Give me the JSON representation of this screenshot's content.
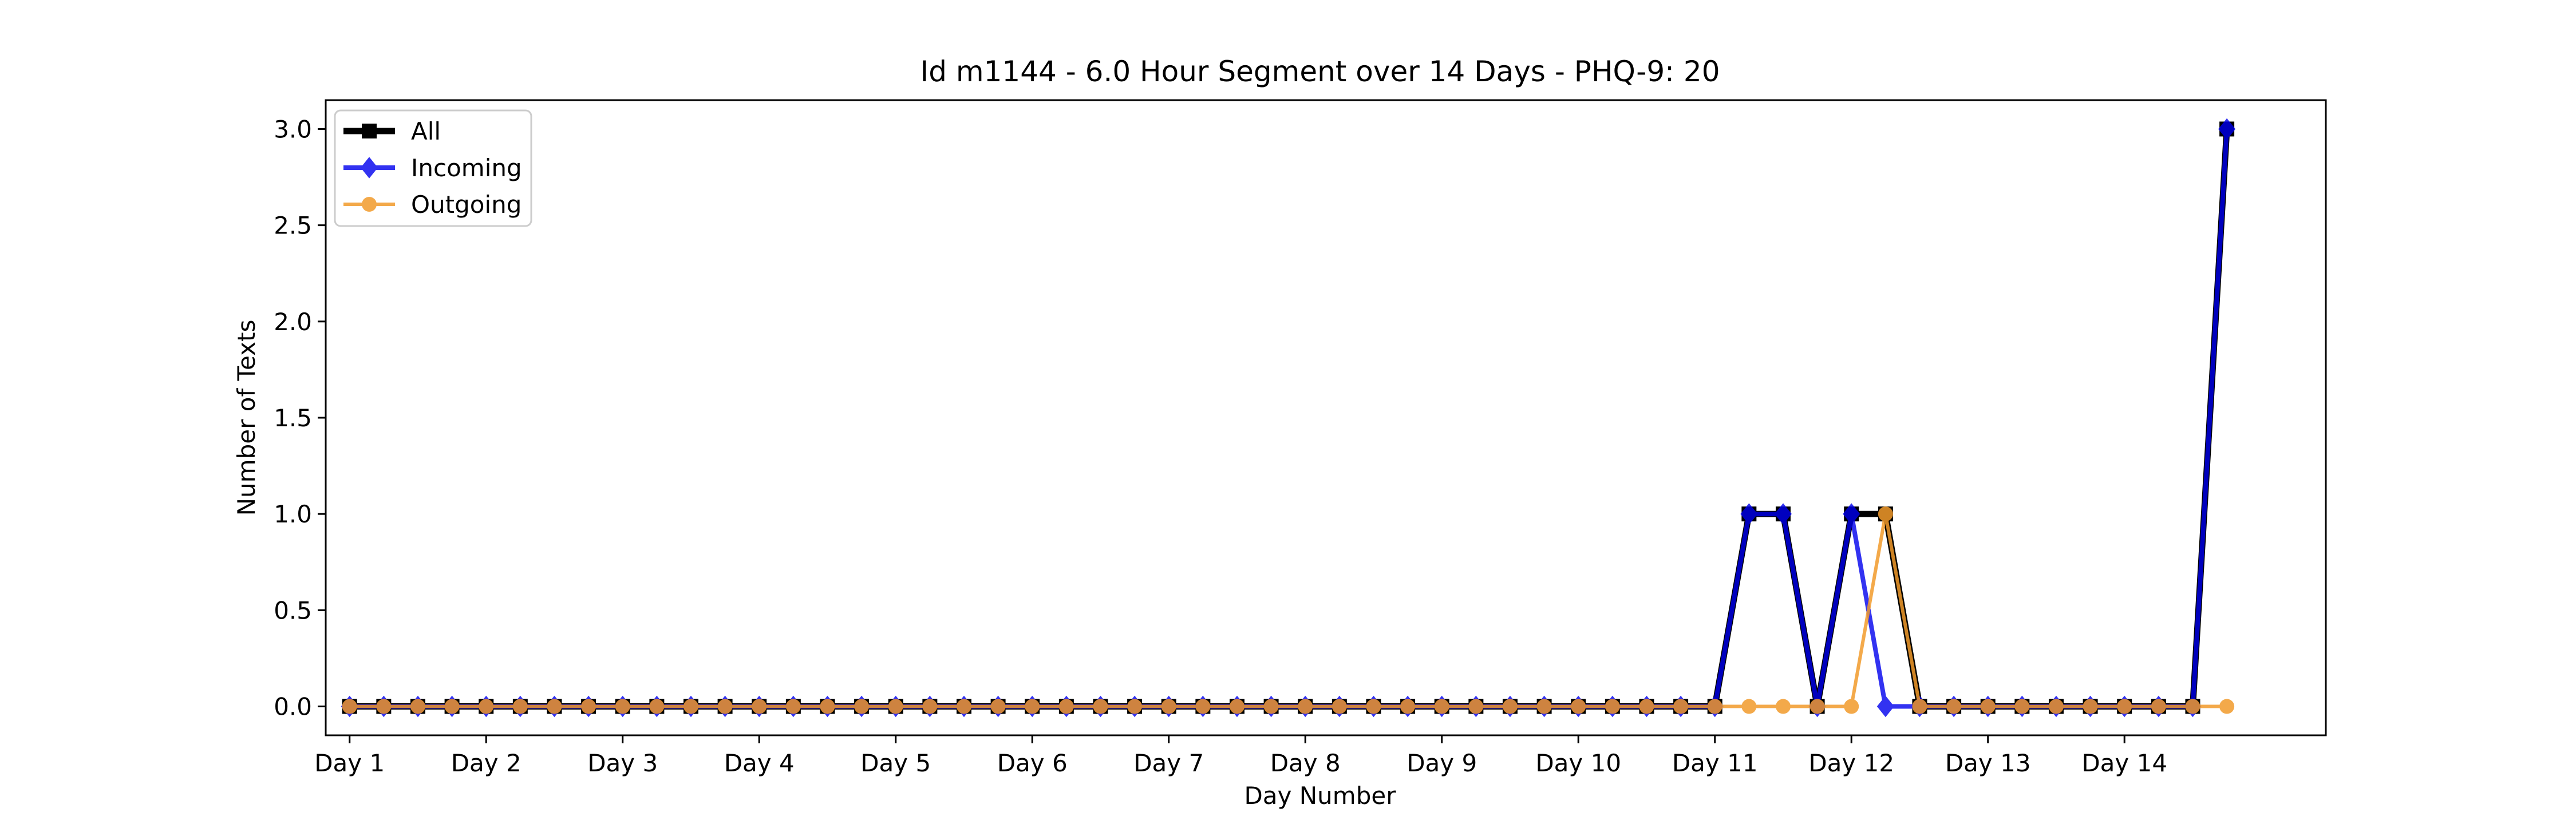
{
  "chart_data": {
    "type": "line",
    "title": "Id m1144 - 6.0 Hour Segment over 14 Days - PHQ-9: 20",
    "xlabel": "Day Number",
    "ylabel": "Number of Texts",
    "xlim": [
      -0.7,
      57.9
    ],
    "ylim": [
      -0.15,
      3.15
    ],
    "x_ticks": [
      {
        "value": 0,
        "label": "Day 1"
      },
      {
        "value": 4,
        "label": "Day 2"
      },
      {
        "value": 8,
        "label": "Day 3"
      },
      {
        "value": 12,
        "label": "Day 4"
      },
      {
        "value": 16,
        "label": "Day 5"
      },
      {
        "value": 20,
        "label": "Day 6"
      },
      {
        "value": 24,
        "label": "Day 7"
      },
      {
        "value": 28,
        "label": "Day 8"
      },
      {
        "value": 32,
        "label": "Day 9"
      },
      {
        "value": 36,
        "label": "Day 10"
      },
      {
        "value": 40,
        "label": "Day 11"
      },
      {
        "value": 44,
        "label": "Day 12"
      },
      {
        "value": 48,
        "label": "Day 13"
      },
      {
        "value": 52,
        "label": "Day 14"
      }
    ],
    "y_ticks": [
      {
        "value": 0.0,
        "label": "0.0"
      },
      {
        "value": 0.5,
        "label": "0.5"
      },
      {
        "value": 1.0,
        "label": "1.0"
      },
      {
        "value": 1.5,
        "label": "1.5"
      },
      {
        "value": 2.0,
        "label": "2.0"
      },
      {
        "value": 2.5,
        "label": "2.5"
      },
      {
        "value": 3.0,
        "label": "3.0"
      }
    ],
    "grid": false,
    "legend_position": "top-left",
    "series": [
      {
        "name": "All",
        "color": "#000000",
        "marker": "square",
        "values": [
          0,
          0,
          0,
          0,
          0,
          0,
          0,
          0,
          0,
          0,
          0,
          0,
          0,
          0,
          0,
          0,
          0,
          0,
          0,
          0,
          0,
          0,
          0,
          0,
          0,
          0,
          0,
          0,
          0,
          0,
          0,
          0,
          0,
          0,
          0,
          0,
          0,
          0,
          0,
          0,
          0,
          1,
          1,
          0,
          1,
          1,
          0,
          0,
          0,
          0,
          0,
          0,
          0,
          0,
          0,
          3
        ]
      },
      {
        "name": "Incoming",
        "color": "#0000ee",
        "marker": "diamond",
        "values": [
          0,
          0,
          0,
          0,
          0,
          0,
          0,
          0,
          0,
          0,
          0,
          0,
          0,
          0,
          0,
          0,
          0,
          0,
          0,
          0,
          0,
          0,
          0,
          0,
          0,
          0,
          0,
          0,
          0,
          0,
          0,
          0,
          0,
          0,
          0,
          0,
          0,
          0,
          0,
          0,
          0,
          1,
          1,
          0,
          1,
          0,
          0,
          0,
          0,
          0,
          0,
          0,
          0,
          0,
          0,
          3
        ]
      },
      {
        "name": "Outgoing",
        "color": "#f29b2b",
        "marker": "circle",
        "values": [
          0,
          0,
          0,
          0,
          0,
          0,
          0,
          0,
          0,
          0,
          0,
          0,
          0,
          0,
          0,
          0,
          0,
          0,
          0,
          0,
          0,
          0,
          0,
          0,
          0,
          0,
          0,
          0,
          0,
          0,
          0,
          0,
          0,
          0,
          0,
          0,
          0,
          0,
          0,
          0,
          0,
          0,
          0,
          0,
          0,
          1,
          0,
          0,
          0,
          0,
          0,
          0,
          0,
          0,
          0,
          0
        ]
      }
    ]
  }
}
